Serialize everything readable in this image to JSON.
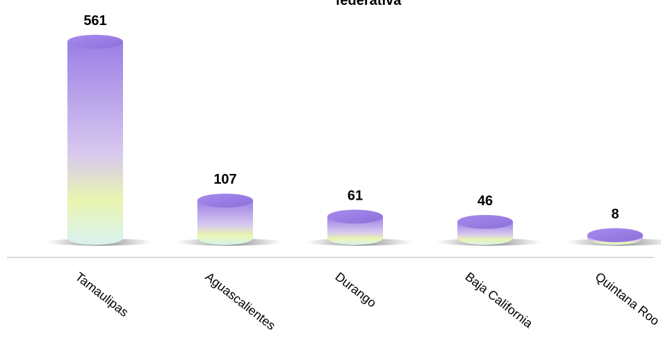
{
  "chart_data": {
    "type": "bar",
    "title": "federativa",
    "categories": [
      "Tamaulipas",
      "Aguascalientes",
      "Durango",
      "Baja California",
      "Quintana Roo"
    ],
    "values": [
      561,
      107,
      61,
      46,
      8
    ],
    "colors": {
      "top": "#9b7fe6",
      "mid": "#d7c8ef",
      "low": "#e9f5b0",
      "base": "#d8f2f0"
    },
    "xlabel": "",
    "ylabel": "",
    "grid": false
  }
}
